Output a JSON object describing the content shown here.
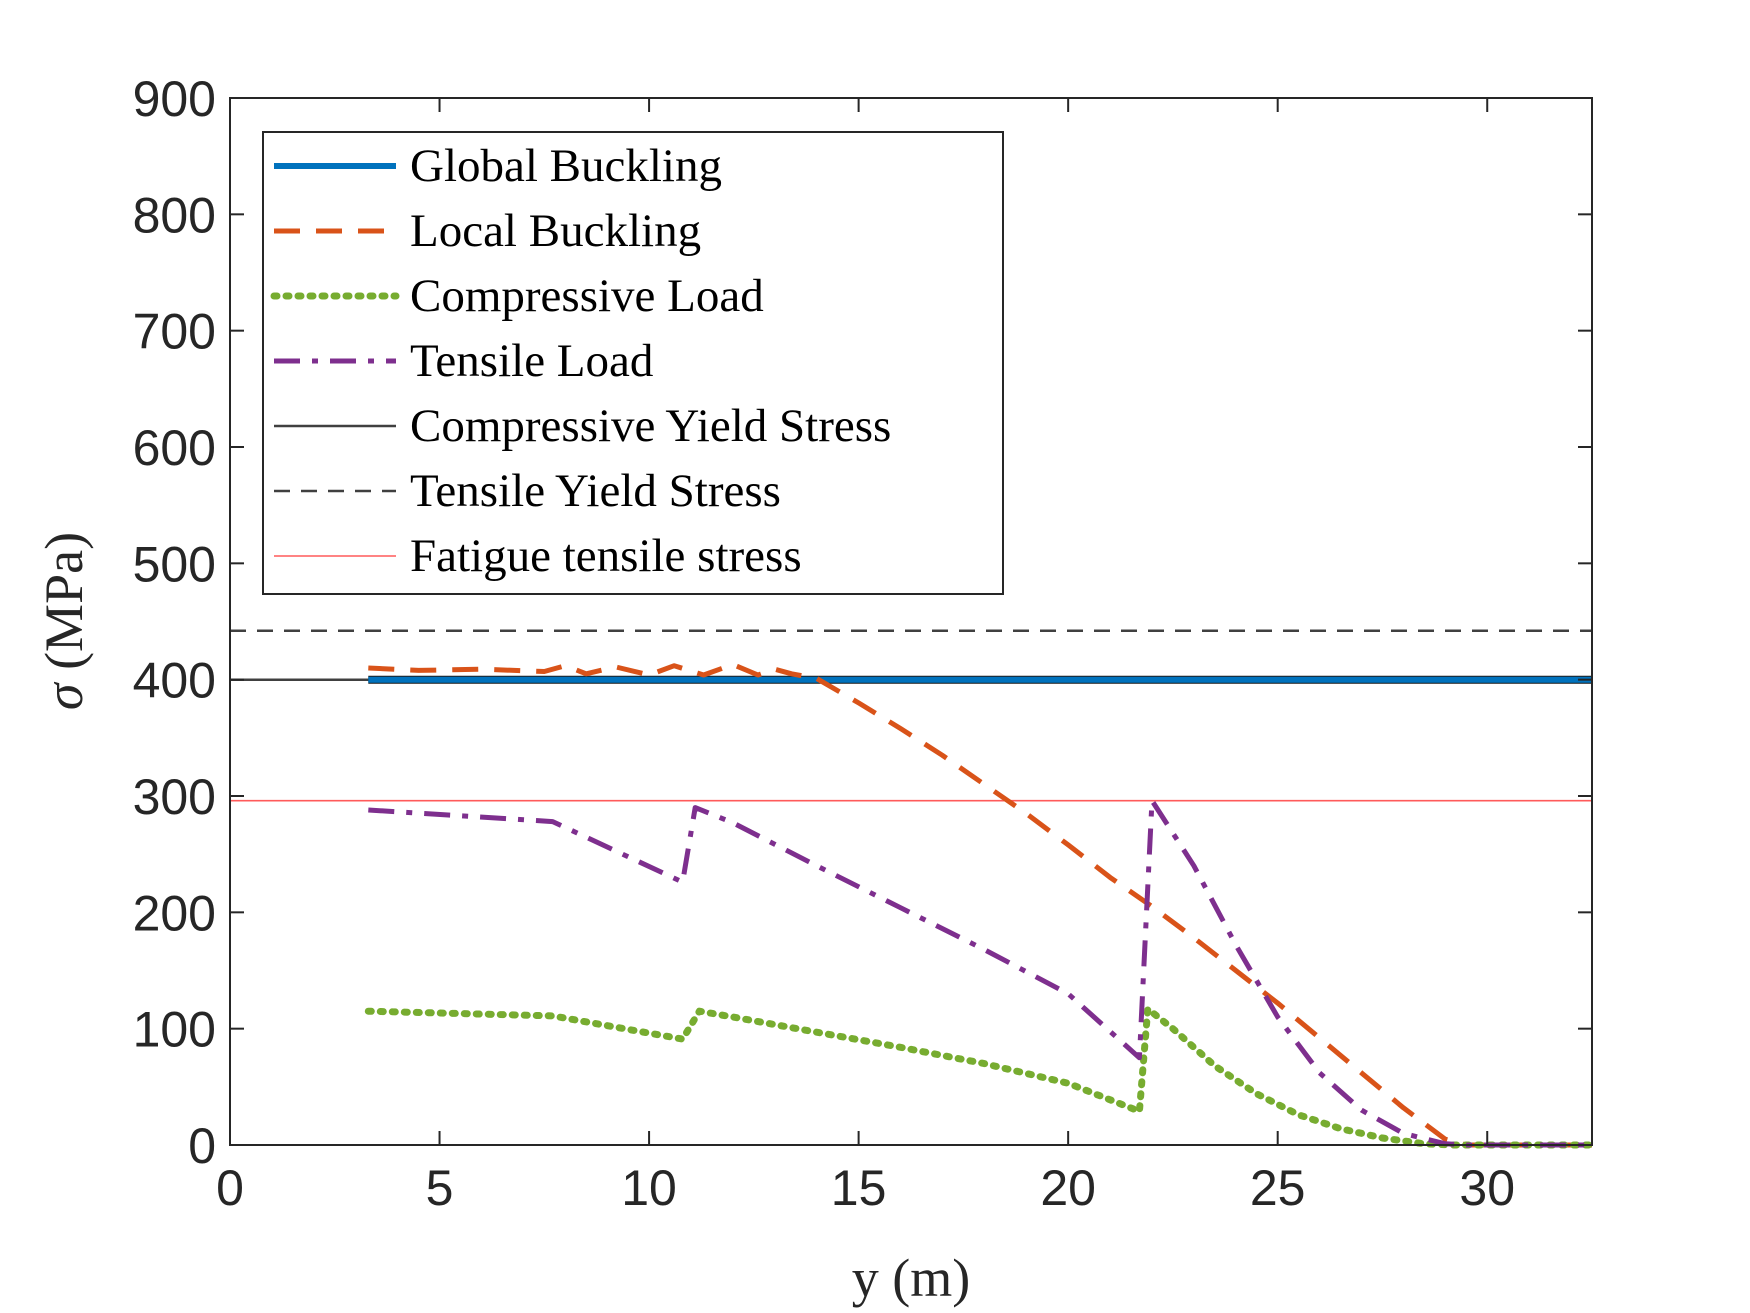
{
  "chart_data": {
    "type": "line",
    "xlabel": "y (m)",
    "ylabel_symbol": "σ",
    "ylabel_unit": "(MPa)",
    "xlim": [
      0,
      32.5
    ],
    "ylim": [
      0,
      900
    ],
    "xticks": [
      0,
      5,
      10,
      15,
      20,
      25,
      30
    ],
    "yticks": [
      0,
      100,
      200,
      300,
      400,
      500,
      600,
      700,
      800,
      900
    ],
    "grid": false,
    "legend_position": "top-left",
    "series": [
      {
        "name": "Global Buckling",
        "color": "#0072BD",
        "style": "solid-thick",
        "x": [
          3.3,
          32.5
        ],
        "y": [
          400,
          400
        ]
      },
      {
        "name": "Local Buckling",
        "color": "#D95319",
        "style": "dashed",
        "x": [
          3.3,
          4.5,
          6,
          7.5,
          8,
          8.5,
          9.2,
          10,
          10.6,
          11.3,
          12,
          12.6,
          13,
          13.4,
          14,
          15,
          16,
          17,
          18,
          19,
          20,
          21,
          22,
          23,
          24,
          25,
          26,
          27,
          28,
          29,
          29.5,
          30,
          31,
          32.5
        ],
        "y": [
          410,
          408,
          409,
          407,
          412,
          405,
          411,
          404,
          412,
          404,
          413,
          404,
          409,
          405,
          401,
          380,
          358,
          335,
          310,
          285,
          258,
          230,
          205,
          178,
          150,
          122,
          92,
          62,
          32,
          5,
          0,
          0,
          0,
          0
        ]
      },
      {
        "name": "Compressive Load",
        "color": "#77AC30",
        "style": "dotted",
        "x": [
          3.3,
          7.7,
          10.8,
          11.2,
          12,
          14,
          16,
          18,
          20,
          21.7,
          21.9,
          22.5,
          23.5,
          24.5,
          25.5,
          26.5,
          27.5,
          28.5,
          29.2,
          30,
          31,
          32.5
        ],
        "y": [
          115,
          111,
          91,
          115,
          110,
          97,
          84,
          70,
          53,
          29,
          117,
          100,
          68,
          44,
          26,
          14,
          6,
          1,
          0,
          0,
          0,
          0
        ]
      },
      {
        "name": "Tensile Load",
        "color": "#7E2F8E",
        "style": "dash-dot",
        "x": [
          3.3,
          7.7,
          10.8,
          11.1,
          12,
          14,
          16,
          18,
          20,
          21.7,
          22.0,
          23,
          24,
          25,
          26,
          27,
          28,
          29,
          29.5,
          30,
          31,
          32.5
        ],
        "y": [
          288,
          278,
          226,
          290,
          277,
          240,
          204,
          168,
          130,
          75,
          296,
          240,
          172,
          110,
          62,
          30,
          10,
          1,
          0,
          0,
          0,
          0
        ]
      },
      {
        "name": "Compressive Yield Stress",
        "color": "#404040",
        "style": "solid-thin",
        "x": [
          0,
          32.5
        ],
        "y": [
          400,
          400
        ]
      },
      {
        "name": "Tensile Yield Stress",
        "color": "#404040",
        "style": "dashed-thin",
        "x": [
          0,
          32.5
        ],
        "y": [
          442,
          442
        ]
      },
      {
        "name": "Fatigue tensile stress",
        "color": "#FF5A5A",
        "style": "solid-hairline",
        "x": [
          0,
          32.5
        ],
        "y": [
          296,
          296
        ]
      }
    ]
  }
}
